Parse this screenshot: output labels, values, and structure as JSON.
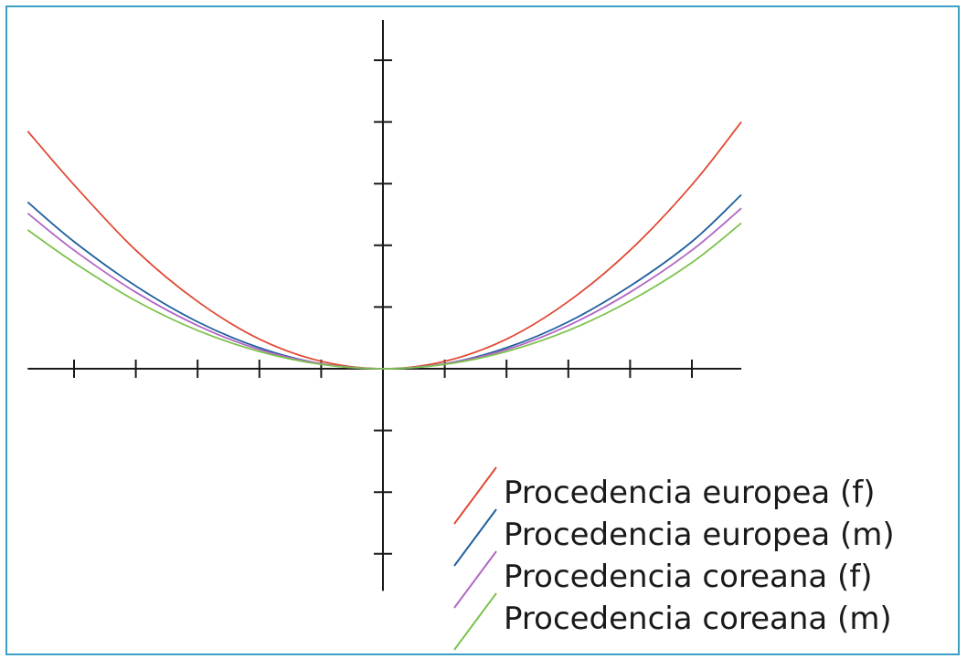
{
  "chart_data": {
    "type": "line",
    "title": "",
    "xlabel": "",
    "ylabel": "",
    "xlim": [
      -5.75,
      5.8
    ],
    "ylim": [
      -3.6,
      5.65
    ],
    "x_ticks": [
      -5,
      -4,
      -3,
      -2,
      -1,
      1,
      2,
      3,
      4,
      5
    ],
    "y_ticks": [
      -3,
      -2,
      -1,
      1,
      2,
      3,
      4,
      5
    ],
    "grid": false,
    "legend_position": "bottom-right",
    "series": [
      {
        "name": "Procedencia europea (f)",
        "color": "#e04a35",
        "x": [
          -5.75,
          -5,
          -4,
          -3,
          -2,
          -1,
          0,
          1,
          2,
          3,
          4,
          5,
          5.8
        ],
        "y": [
          3.85,
          2.98,
          1.92,
          1.09,
          0.48,
          0.12,
          0,
          0.12,
          0.48,
          1.09,
          1.92,
          2.98,
          4.0
        ]
      },
      {
        "name": "Procedencia europea (m)",
        "color": "#1f5f9e",
        "x": [
          -5.75,
          -5,
          -4,
          -3,
          -2,
          -1,
          0,
          1,
          2,
          3,
          4,
          5,
          5.8
        ],
        "y": [
          2.7,
          2.06,
          1.34,
          0.76,
          0.34,
          0.08,
          0,
          0.08,
          0.34,
          0.76,
          1.34,
          2.06,
          2.82
        ]
      },
      {
        "name": "Procedencia coreana (f)",
        "color": "#b266c4",
        "x": [
          -5.75,
          -5,
          -4,
          -3,
          -2,
          -1,
          0,
          1,
          2,
          3,
          4,
          5,
          5.8
        ],
        "y": [
          2.52,
          1.92,
          1.24,
          0.7,
          0.31,
          0.08,
          0,
          0.08,
          0.31,
          0.7,
          1.24,
          1.92,
          2.6
        ]
      },
      {
        "name": "Procedencia coreana (m)",
        "color": "#7dc24d",
        "x": [
          -5.75,
          -5,
          -4,
          -3,
          -2,
          -1,
          0,
          1,
          2,
          3,
          4,
          5,
          5.8
        ],
        "y": [
          2.25,
          1.72,
          1.1,
          0.62,
          0.28,
          0.07,
          0,
          0.07,
          0.28,
          0.62,
          1.1,
          1.72,
          2.36
        ]
      }
    ]
  },
  "colors": {
    "frame_border": "#3d9ec4",
    "axis": "#1a1a1a"
  }
}
